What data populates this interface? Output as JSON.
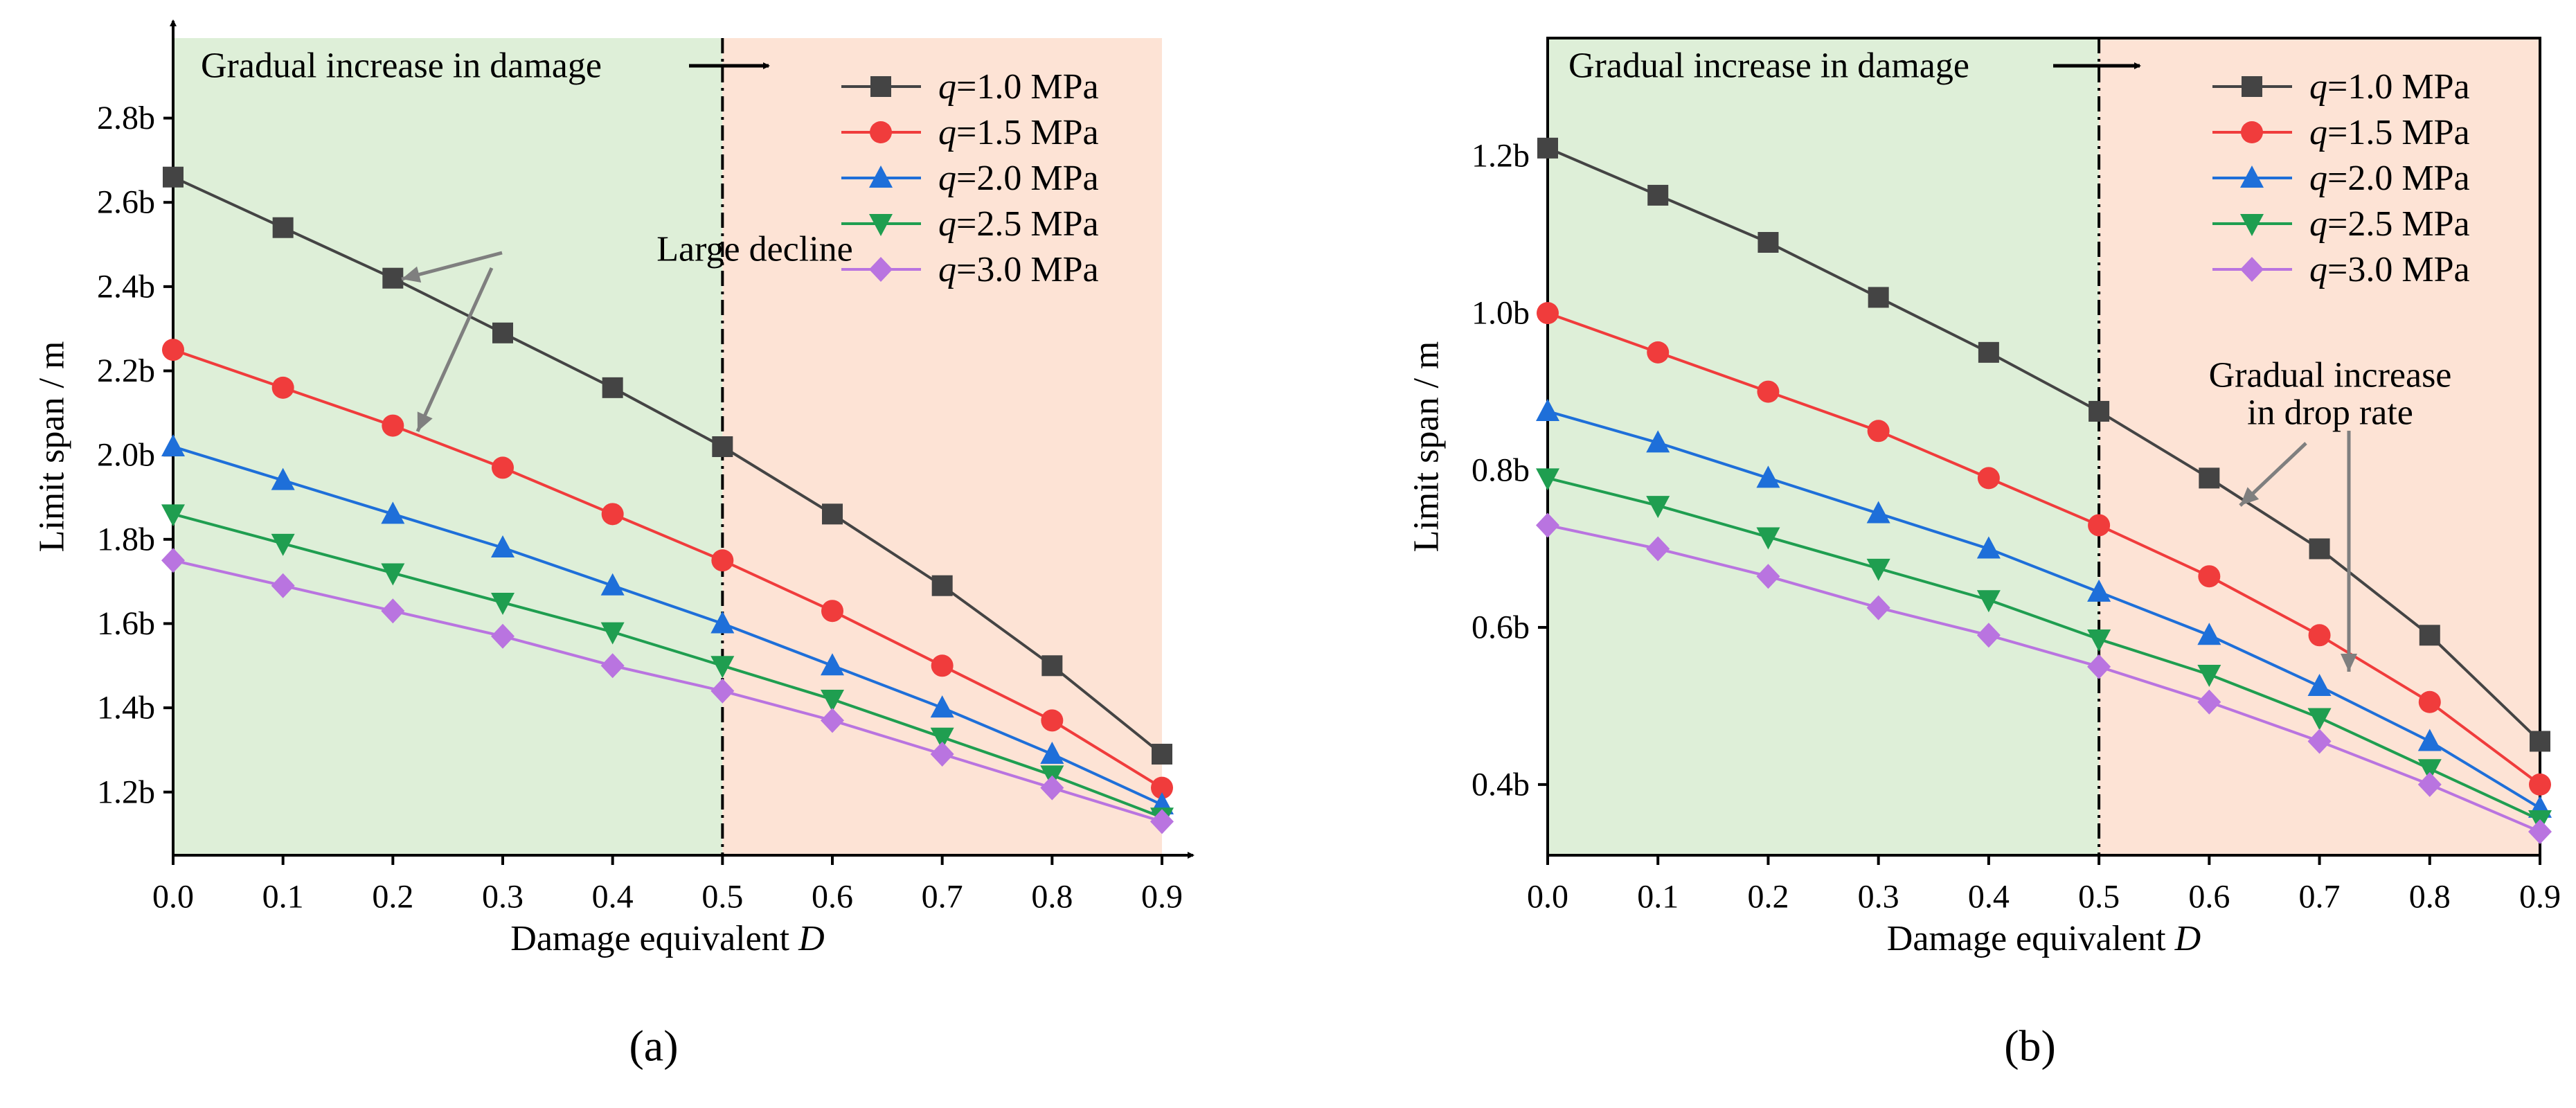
{
  "chart_data": [
    {
      "type": "line",
      "panel_label": "(a)",
      "title": "",
      "xlabel": "Damage equivalent",
      "xlabel_var": "D",
      "ylabel": "Limit span / m",
      "xlim": [
        0.0,
        0.9
      ],
      "ylim": [
        1.05,
        2.99
      ],
      "x_ticks": [
        "0.0",
        "0.1",
        "0.2",
        "0.3",
        "0.4",
        "0.5",
        "0.6",
        "0.7",
        "0.8",
        "0.9"
      ],
      "y_tick_values": [
        1.2,
        1.4,
        1.6,
        1.8,
        2.0,
        2.2,
        2.4,
        2.6,
        2.8
      ],
      "y_ticks": [
        "1.2b",
        "1.4b",
        "1.6b",
        "1.8b",
        "2.0b",
        "2.2b",
        "2.4b",
        "2.6b",
        "2.8b"
      ],
      "grid": false,
      "legend_position": "top-right",
      "regions": {
        "split_x": 0.5,
        "left_color": "#deefd8",
        "right_color": "#fde3d5",
        "divider_style": "dash-dot"
      },
      "x": [
        0.0,
        0.1,
        0.2,
        0.3,
        0.4,
        0.5,
        0.6,
        0.7,
        0.8,
        0.9
      ],
      "series": [
        {
          "name": "q=1.0 MPa",
          "var": "q",
          "rest": "=1.0 MPa",
          "color": "#444444",
          "marker": "square",
          "values": [
            2.66,
            2.54,
            2.42,
            2.29,
            2.16,
            2.02,
            1.86,
            1.69,
            1.5,
            1.29
          ]
        },
        {
          "name": "q=1.5 MPa",
          "var": "q",
          "rest": "=1.5 MPa",
          "color": "#f03c3c",
          "marker": "circle",
          "values": [
            2.25,
            2.16,
            2.07,
            1.97,
            1.86,
            1.75,
            1.63,
            1.5,
            1.37,
            1.21
          ]
        },
        {
          "name": "q=2.0 MPa",
          "var": "q",
          "rest": "=2.0 MPa",
          "color": "#1e6fd9",
          "marker": "triangle-up",
          "values": [
            2.02,
            1.94,
            1.86,
            1.78,
            1.69,
            1.6,
            1.5,
            1.4,
            1.29,
            1.17
          ]
        },
        {
          "name": "q=2.5 MPa",
          "var": "q",
          "rest": "=2.5 MPa",
          "color": "#1f9e50",
          "marker": "triangle-down",
          "values": [
            1.86,
            1.79,
            1.72,
            1.65,
            1.58,
            1.5,
            1.42,
            1.33,
            1.24,
            1.14
          ]
        },
        {
          "name": "q=3.0 MPa",
          "var": "q",
          "rest": "=3.0 MPa",
          "color": "#b974e0",
          "marker": "diamond",
          "values": [
            1.75,
            1.69,
            1.63,
            1.57,
            1.5,
            1.44,
            1.37,
            1.29,
            1.21,
            1.13
          ]
        }
      ],
      "annotations": {
        "damage_text": "Gradual increase in damage",
        "callout_lines": [
          "Large decline"
        ]
      }
    },
    {
      "type": "line",
      "panel_label": "(b)",
      "title": "",
      "xlabel": "Damage equivalent",
      "xlabel_var": "D",
      "ylabel": "Limit span / m",
      "xlim": [
        0.0,
        0.9
      ],
      "ylim": [
        0.31,
        1.35
      ],
      "x_ticks": [
        "0.0",
        "0.1",
        "0.2",
        "0.3",
        "0.4",
        "0.5",
        "0.6",
        "0.7",
        "0.8",
        "0.9"
      ],
      "y_tick_values": [
        0.4,
        0.6,
        0.8,
        1.0,
        1.2
      ],
      "y_ticks": [
        "0.4b",
        "0.6b",
        "0.8b",
        "1.0b",
        "1.2b"
      ],
      "grid": false,
      "legend_position": "top-right",
      "regions": {
        "split_x": 0.5,
        "left_color": "#deefd8",
        "right_color": "#fde3d5",
        "divider_style": "dash-dot"
      },
      "x": [
        0.0,
        0.1,
        0.2,
        0.3,
        0.4,
        0.5,
        0.6,
        0.7,
        0.8,
        0.9
      ],
      "series": [
        {
          "name": "q=1.0 MPa",
          "var": "q",
          "rest": "=1.0 MPa",
          "color": "#444444",
          "marker": "square",
          "values": [
            1.21,
            1.15,
            1.09,
            1.02,
            0.95,
            0.875,
            0.79,
            0.7,
            0.59,
            0.455
          ]
        },
        {
          "name": "q=1.5 MPa",
          "var": "q",
          "rest": "=1.5 MPa",
          "color": "#f03c3c",
          "marker": "circle",
          "values": [
            1.0,
            0.95,
            0.9,
            0.85,
            0.79,
            0.73,
            0.665,
            0.59,
            0.505,
            0.4
          ]
        },
        {
          "name": "q=2.0 MPa",
          "var": "q",
          "rest": "=2.0 MPa",
          "color": "#1e6fd9",
          "marker": "triangle-up",
          "values": [
            0.875,
            0.835,
            0.79,
            0.745,
            0.7,
            0.645,
            0.59,
            0.525,
            0.455,
            0.37
          ]
        },
        {
          "name": "q=2.5 MPa",
          "var": "q",
          "rest": "=2.5 MPa",
          "color": "#1f9e50",
          "marker": "triangle-down",
          "values": [
            0.79,
            0.755,
            0.715,
            0.675,
            0.635,
            0.585,
            0.54,
            0.485,
            0.42,
            0.355
          ]
        },
        {
          "name": "q=3.0 MPa",
          "var": "q",
          "rest": "=3.0 MPa",
          "color": "#b974e0",
          "marker": "diamond",
          "values": [
            0.73,
            0.7,
            0.665,
            0.625,
            0.59,
            0.55,
            0.505,
            0.455,
            0.4,
            0.34
          ]
        }
      ],
      "annotations": {
        "damage_text": "Gradual increase in damage",
        "callout_lines": [
          "Gradual increase",
          "in drop rate"
        ]
      }
    }
  ]
}
